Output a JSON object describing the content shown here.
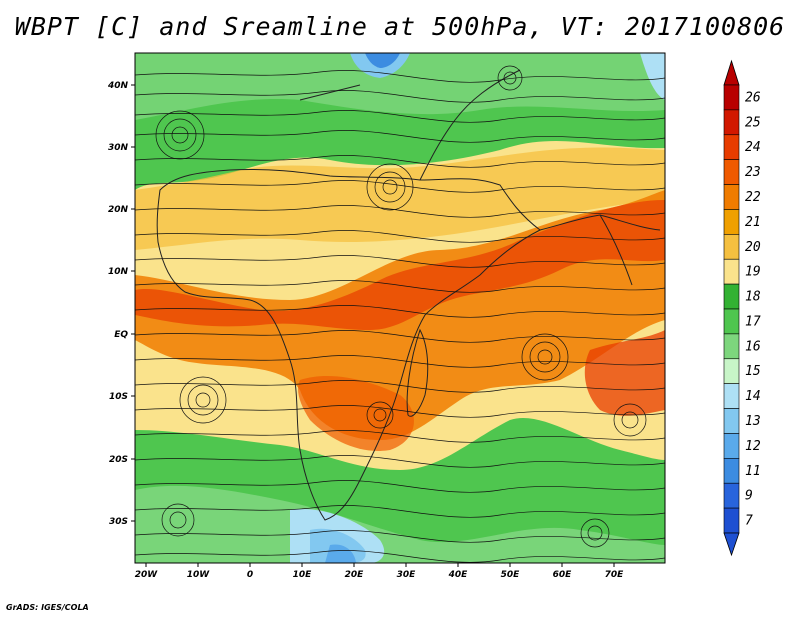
{
  "title": "WBPT [C] and Sreamline at 500hPa, VT: 2017100806",
  "footer": "GrADS: IGES/COLA",
  "map": {
    "lat_labels": [
      "40N",
      "30N",
      "20N",
      "10N",
      "EQ",
      "10S",
      "20S",
      "30S"
    ],
    "lon_labels": [
      "20W",
      "10W",
      "0",
      "10E",
      "20E",
      "30E",
      "40E",
      "50E",
      "60E",
      "70E"
    ]
  },
  "colorbar": {
    "labels": [
      "26",
      "25",
      "24",
      "23",
      "22",
      "21",
      "20",
      "19",
      "18",
      "17",
      "16",
      "15",
      "14",
      "13",
      "12",
      "11",
      "9",
      "7"
    ],
    "colors": [
      "#b80000",
      "#d21800",
      "#e83c00",
      "#f05a00",
      "#f07c00",
      "#f0a000",
      "#f5c040",
      "#fae38c",
      "#33b233",
      "#4fc64f",
      "#7dd67d",
      "#c8f5c8",
      "#aee0f5",
      "#82c8f0",
      "#5aaaeb",
      "#3c8ce1",
      "#2864dc",
      "#1e50d2"
    ]
  }
}
